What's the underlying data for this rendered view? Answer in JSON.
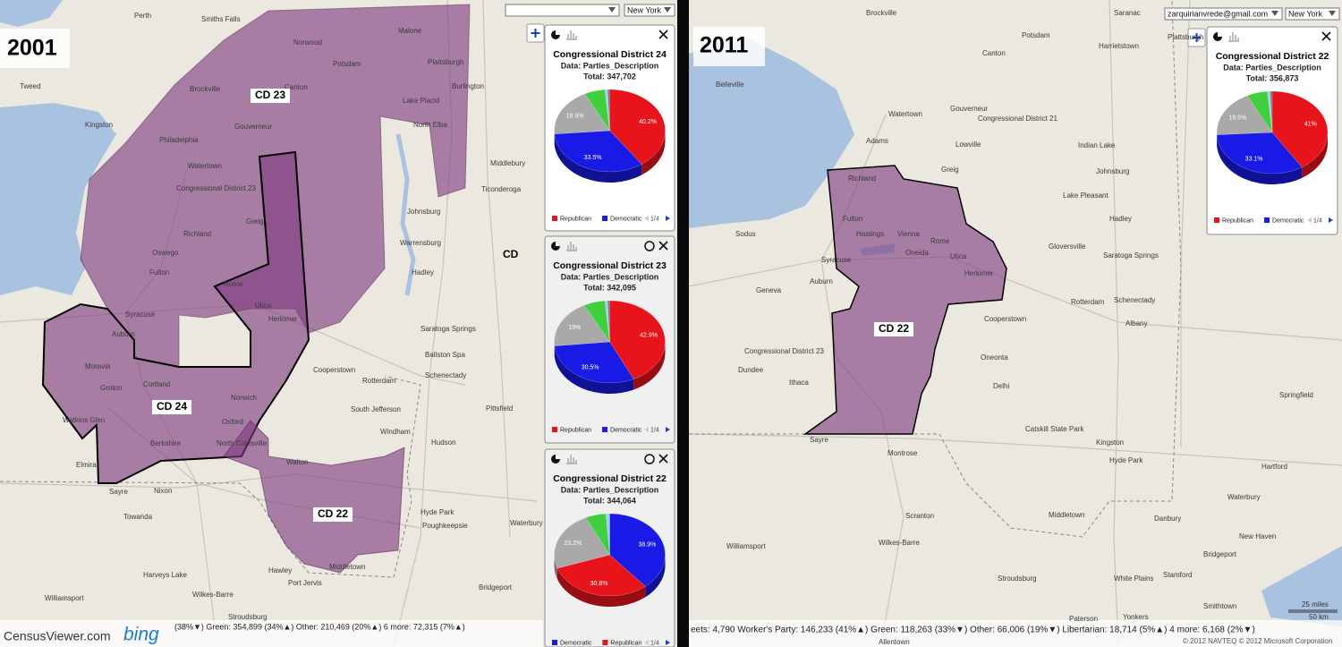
{
  "left_panel": {
    "year": "2001",
    "selects": [
      "New York"
    ],
    "district_labels": [
      "CD 23",
      "CD 24",
      "CD 22",
      "CD"
    ],
    "places": [
      "Perth",
      "Smiths Falls",
      "Tweed",
      "Brockville",
      "Kingston",
      "Philadelphia",
      "Watertown",
      "Gouverneur",
      "Canton",
      "Norwood",
      "Potsdam",
      "Malone",
      "Plattsburgh",
      "Burlington",
      "Lake Placid",
      "North Elba",
      "Middlebury",
      "Ticonderoga",
      "Congressional District 23",
      "Greig",
      "Richland",
      "Oswego",
      "Fulton",
      "Syracuse",
      "Auburn",
      "Rome",
      "Utica",
      "Herkimer",
      "Johnsburg",
      "Warrensburg",
      "Hadley",
      "Saratoga Springs",
      "Ballston Spa",
      "Schenectady",
      "Rotterdam",
      "Cooperstown",
      "Norwich",
      "Cortland",
      "Groton",
      "Moravia",
      "Watkins Glen",
      "Elmira",
      "Berkshire",
      "Oxford",
      "North Colesville",
      "Walton",
      "South Jefferson",
      "Windham",
      "Hudson",
      "Pittsfield",
      "Hyde Park",
      "Poughkeepsie",
      "Middletown",
      "Port Jervis",
      "Waterbury",
      "Bridgeport",
      "Sayre",
      "Nixon",
      "Towanda",
      "Hawley",
      "Wilkes-Barre",
      "Williamsport",
      "Harveys Lake",
      "Stroudsburg"
    ],
    "popups": [
      {
        "title": "Congressional District 24",
        "data_label": "Data: Parties_Description",
        "total": "Total: 347,702",
        "slices": [
          {
            "value": 40.2,
            "label": "40.2%",
            "color": "#e8141c"
          },
          {
            "value": 33.5,
            "label": "33.5%",
            "color": "#1a1ae6"
          },
          {
            "value": 18.9,
            "label": "18.9%",
            "color": "#a9a9a9"
          },
          {
            "value": 6,
            "color": "#3fcf3f"
          },
          {
            "value": 0.8,
            "color": "#9fd0ee"
          },
          {
            "value": 0.6,
            "color": "#7a7a7a"
          }
        ],
        "legend": [
          {
            "name": "Republican",
            "color": "#e8141c"
          },
          {
            "name": "Democratic",
            "color": "#1a1ae6"
          }
        ],
        "pager": "1/4"
      },
      {
        "title": "Congressional District 23",
        "data_label": "Data: Parties_Description",
        "total": "Total: 342,095",
        "slices": [
          {
            "value": 42.9,
            "label": "42.9%",
            "color": "#e8141c"
          },
          {
            "value": 30.5,
            "label": "30.5%",
            "color": "#1a1ae6"
          },
          {
            "value": 19,
            "label": "19%",
            "color": "#a9a9a9"
          },
          {
            "value": 6.2,
            "color": "#3fcf3f"
          },
          {
            "value": 0.8,
            "color": "#9fd0ee"
          },
          {
            "value": 0.6,
            "color": "#7a7a7a"
          }
        ],
        "legend": [
          {
            "name": "Republican",
            "color": "#e8141c"
          },
          {
            "name": "Democratic",
            "color": "#1a1ae6"
          }
        ],
        "pager": "1/4"
      },
      {
        "title": "Congressional District 22",
        "data_label": "Data: Parties_Description",
        "total": "Total: 344,064",
        "slices": [
          {
            "value": 38.9,
            "label": "38.9%",
            "color": "#1a1ae6"
          },
          {
            "value": 30.8,
            "label": "30.8%",
            "color": "#e8141c"
          },
          {
            "value": 23.2,
            "label": "23.2%",
            "color": "#a9a9a9"
          },
          {
            "value": 6,
            "color": "#3fcf3f"
          },
          {
            "value": 1.1,
            "color": "#9fd0ee"
          }
        ],
        "legend": [
          {
            "name": "Democratic",
            "color": "#1a1ae6"
          },
          {
            "name": "Republican",
            "color": "#e8141c"
          }
        ],
        "pager": "1/4"
      }
    ],
    "status": "(38%▼) Green: 354,899 (34%▲) Other: 210,469 (20%▲) 6 more: 72,315 (7%▲)"
  },
  "right_panel": {
    "year": "2011",
    "selects": [
      "zarquirianvrede@gmail.com",
      "New York"
    ],
    "district_labels": [
      "CD 22"
    ],
    "places": [
      "Belleville",
      "Brockville",
      "Gouverneur",
      "Watertown",
      "Canton",
      "Potsdam",
      "Saranac",
      "Harrietstown",
      "Plattsburgh",
      "Congressional District 21",
      "Adams",
      "Lowville",
      "Greig",
      "Richland",
      "Indian Lake",
      "Johnsburg",
      "Lake Pleasant",
      "Sodus",
      "Fulton",
      "Hastings",
      "Syracuse",
      "Vienna",
      "Rome",
      "Oneida",
      "Utica",
      "Herkimer",
      "Gloversville",
      "Hadley",
      "Saratoga Springs",
      "Rotterdam",
      "Schenectady",
      "Albany",
      "Auburn",
      "Geneva",
      "Cooperstown",
      "Congressional District 23",
      "Dundee",
      "Ithaca",
      "Oneonta",
      "Delhi",
      "Sayre",
      "Montrose",
      "Catskill State Park",
      "Kingston",
      "Hyde Park",
      "Springfield",
      "Hartford",
      "Waterbury",
      "Danbury",
      "New Haven",
      "Bridgeport",
      "Stamford",
      "Scranton",
      "Wilkes-Barre",
      "Williamsport",
      "Middletown",
      "White Plains",
      "Paterson",
      "Yonkers",
      "Smithtown",
      "Allentown",
      "Stroudsburg"
    ],
    "popups": [
      {
        "title": "Congressional District 22",
        "data_label": "Data: Parties_Description",
        "total": "Total: 356,873",
        "slices": [
          {
            "value": 41,
            "label": "41%",
            "color": "#e8141c"
          },
          {
            "value": 33.1,
            "label": "33.1%",
            "color": "#1a1ae6"
          },
          {
            "value": 18.5,
            "label": "18.5%",
            "color": "#a9a9a9"
          },
          {
            "value": 6,
            "color": "#3fcf3f"
          },
          {
            "value": 0.8,
            "color": "#9fd0ee"
          },
          {
            "value": 0.6,
            "color": "#7a7a7a"
          }
        ],
        "legend": [
          {
            "name": "Republican",
            "color": "#e8141c"
          },
          {
            "name": "Democratic",
            "color": "#1a1ae6"
          }
        ],
        "pager": "1/4"
      }
    ],
    "status": "eets: 4,790 Worker's Party: 146,233 (41%▲) Green: 118,263 (33%▼) Other: 66,006 (19%▼) Libertarian: 18,714 (5%▲) 4 more: 6,168 (2%▼)"
  },
  "logo": {
    "censusviewer": "CensusViewer.com",
    "bing": "bing"
  },
  "copyright": "© 2012 NAVTEQ © 2012 Microsoft Corporation",
  "scale": [
    "25 miles",
    "50 km"
  ]
}
